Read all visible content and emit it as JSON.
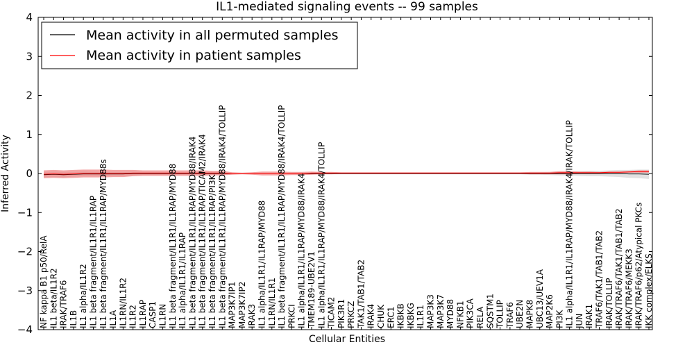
{
  "chart_data": {
    "type": "line",
    "title": "IL1-mediated signaling events -- 99 samples",
    "xlabel": "Cellular Entities",
    "ylabel": "Inferred Activity",
    "ylim": [
      -4,
      4
    ],
    "yticks": [
      -4,
      -3,
      -2,
      -1,
      0,
      1,
      2,
      3,
      4
    ],
    "ytick_labels": [
      "−4",
      "−3",
      "−2",
      "−1",
      "0",
      "1",
      "2",
      "3",
      "4"
    ],
    "legend_position": "top-left",
    "categories": [
      "NF kappa B1 p50/RelA",
      "IL1 beta/IL1R2",
      "IRAK/TRAF6",
      "IL1B",
      "IL1 alpha/IL1R2",
      "IL1 beta fragment/IL1R1/IL1RAP",
      "IL1 beta fragment/IL1R1/IL1RAP/MYD88s",
      "IL1A",
      "IL1RN/IL1R2",
      "IL1R2",
      "IL1RAP",
      "CASP1",
      "IL1RN",
      "IL1 beta fragment/IL1R1/IL1RAP/MYD88",
      "IL1 alpha/IL1R1/IL1RAP",
      "IL1 beta fragment/IL1R1/IL1RAP/MYD88/IRAK4",
      "IL1 beta fragment/IL1R1/IL1RAP/TICAM2/IRAK4",
      "IL1 beta fragment/IL1R1/IL1RAP/PI3K",
      "IL1 beta fragment/IL1R1/IL1RAP/MYD88/IRAK4/TOLLIP",
      "MAP3K7IP1",
      "MAP3K7IP2",
      "IRAK3",
      "IL1 alpha/IL1R1/IL1RAP/MYD88",
      "IL1RN/IL1R1",
      "IL1 beta fragment/IL1R1/IL1RAP/MYD88/IRAK4/TOLLIP",
      "PRKCI",
      "IL1 alpha/IL1R1/IL1RAP/MYD88/IRAK4",
      "TMEM189-UBE2V1",
      "IL1 alpha/IL1R1/IL1RAP/MYD88/IRAK4/TOLLIP",
      "TICAM2",
      "PIK3R1",
      "PRKCZ",
      "TAK1/TAB1/TAB2",
      "IRAK4",
      "CHUK",
      "ERC1",
      "IKBKB",
      "IKBKG",
      "IL1R1",
      "MAP3K3",
      "MAP3K7",
      "MYD88",
      "NFKB1",
      "PIK3CA",
      "RELA",
      "SQSTM1",
      "TOLLIP",
      "TRAF6",
      "UBE2N",
      "MAPK8",
      "UBC13/UEV1A",
      "MAP2K6",
      "PI3K",
      "IL1 alpha/IL1R1/IL1RAP/MYD88/IRAK4/IRAK/TOLLIP",
      "JUN",
      "IRAK1",
      "TRAF6/TAK1/TAB1/TAB2",
      "IRAK/TOLLIP",
      "IRAK/TRAF6/TAK1/TAB1/TAB2",
      "IRAK/TRAF6/MEKK3",
      "IRAK/TRAF6/p62/Atypical PKCs",
      "IKK complex/ELKS"
    ],
    "series": [
      {
        "name": "Mean activity in all permuted samples",
        "color": "#000000",
        "band_color": "#c8c8c8",
        "values": [
          -0.03,
          -0.02,
          -0.03,
          -0.02,
          -0.01,
          -0.01,
          -0.01,
          -0.01,
          -0.01,
          0.0,
          0.0,
          0.0,
          0.0,
          0.0,
          0.0,
          0.0,
          0.0,
          0.0,
          0.0,
          0.0,
          0.0,
          0.0,
          0.0,
          0.0,
          0.0,
          0.0,
          0.0,
          0.0,
          0.0,
          0.0,
          0.0,
          0.0,
          0.0,
          0.0,
          0.0,
          0.0,
          0.0,
          0.0,
          0.0,
          0.0,
          0.0,
          0.0,
          0.0,
          0.0,
          0.0,
          0.0,
          0.0,
          0.0,
          0.0,
          0.0,
          0.0,
          0.0,
          0.0,
          0.0,
          0.0,
          0.0,
          0.0,
          0.0,
          0.0,
          -0.01,
          -0.01,
          -0.02
        ],
        "spread": [
          0.07,
          0.07,
          0.07,
          0.06,
          0.06,
          0.05,
          0.05,
          0.05,
          0.05,
          0.05,
          0.04,
          0.04,
          0.04,
          0.03,
          0.03,
          0.03,
          0.03,
          0.03,
          0.03,
          0.02,
          0.02,
          0.02,
          0.02,
          0.02,
          0.02,
          0.02,
          0.02,
          0.02,
          0.02,
          0.02,
          0.02,
          0.02,
          0.02,
          0.02,
          0.02,
          0.02,
          0.02,
          0.02,
          0.02,
          0.02,
          0.02,
          0.02,
          0.02,
          0.02,
          0.02,
          0.02,
          0.02,
          0.02,
          0.02,
          0.03,
          0.03,
          0.04,
          0.05,
          0.05,
          0.06,
          0.07,
          0.07,
          0.08,
          0.09,
          0.1,
          0.11,
          0.12
        ]
      },
      {
        "name": "Mean activity in patient samples",
        "color": "#ff0000",
        "band_color": "#f08080",
        "values": [
          -0.02,
          -0.01,
          -0.02,
          -0.01,
          0.0,
          0.0,
          0.0,
          0.0,
          0.0,
          0.01,
          0.01,
          0.01,
          0.01,
          0.01,
          0.01,
          0.01,
          0.01,
          0.01,
          0.01,
          0.0,
          0.0,
          0.0,
          0.0,
          0.0,
          0.0,
          0.0,
          0.0,
          0.01,
          0.01,
          0.01,
          0.01,
          0.01,
          0.01,
          0.01,
          0.01,
          0.01,
          0.01,
          0.01,
          0.01,
          0.01,
          0.01,
          0.01,
          0.01,
          0.01,
          0.01,
          0.01,
          0.01,
          0.01,
          0.01,
          0.01,
          0.01,
          0.01,
          0.02,
          0.02,
          0.02,
          0.02,
          0.02,
          0.03,
          0.03,
          0.04,
          0.05,
          0.05
        ],
        "spread": [
          0.1,
          0.1,
          0.1,
          0.1,
          0.1,
          0.1,
          0.1,
          0.09,
          0.09,
          0.08,
          0.07,
          0.07,
          0.07,
          0.07,
          0.07,
          0.07,
          0.07,
          0.06,
          0.06,
          0.03,
          0.02,
          0.03,
          0.05,
          0.05,
          0.05,
          0.04,
          0.04,
          0.04,
          0.03,
          0.03,
          0.02,
          0.02,
          0.02,
          0.02,
          0.02,
          0.02,
          0.02,
          0.02,
          0.02,
          0.02,
          0.02,
          0.02,
          0.02,
          0.02,
          0.02,
          0.02,
          0.02,
          0.02,
          0.02,
          0.03,
          0.03,
          0.03,
          0.04,
          0.04,
          0.03,
          0.03,
          0.02,
          0.02,
          0.02,
          0.02,
          0.03,
          0.03
        ]
      }
    ]
  }
}
